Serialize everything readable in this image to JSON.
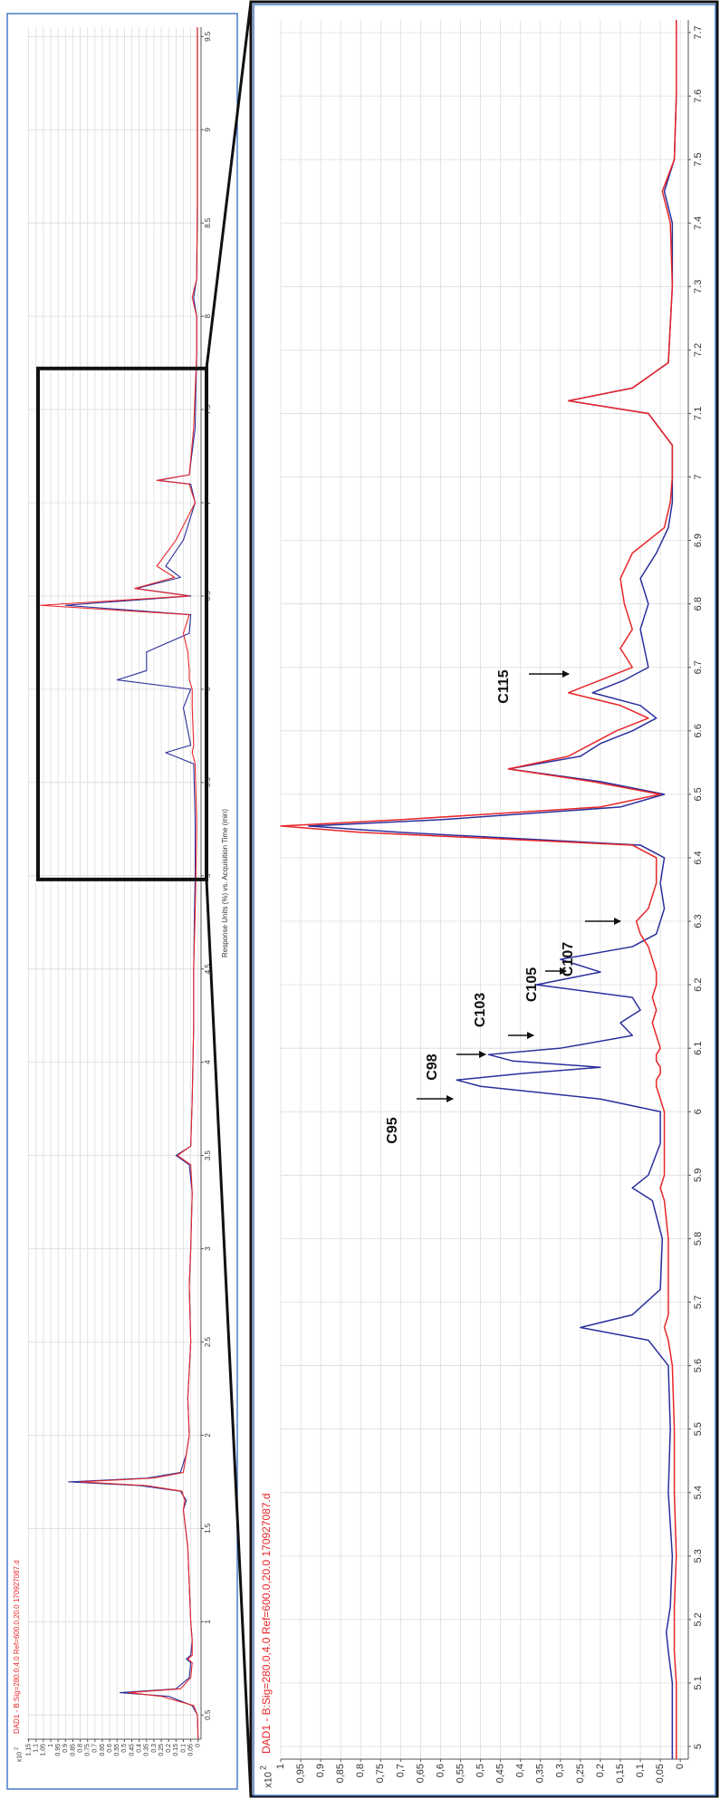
{
  "chart_data": [
    {
      "type": "line",
      "title": "DAD1 - B:Sig=280.0,4.0 Ref=600.0,20.0 170927087.d",
      "x_label": "Response Units (%) vs. Acquisition Time (min)",
      "y_scale": {
        "base": "x10",
        "exponent": "2"
      },
      "x": [
        0.37,
        0.5,
        0.55,
        0.6,
        0.62,
        0.64,
        0.7,
        0.78,
        0.8,
        0.82,
        0.9,
        1.0,
        1.2,
        1.4,
        1.6,
        1.65,
        1.7,
        1.73,
        1.75,
        1.77,
        1.8,
        1.9,
        2.0,
        2.2,
        2.5,
        2.8,
        3.0,
        3.3,
        3.45,
        3.5,
        3.55,
        3.8,
        4.2,
        4.5,
        4.8,
        5.0,
        5.3,
        5.6,
        5.66,
        5.7,
        5.9,
        6.0,
        6.05,
        6.1,
        6.2,
        6.3,
        6.4,
        6.45,
        6.5,
        6.54,
        6.6,
        6.66,
        6.8,
        7.0,
        7.1,
        7.12,
        7.15,
        7.4,
        7.8,
        8.0,
        8.1,
        8.2,
        8.6,
        9.0,
        9.55
      ],
      "series": [
        {
          "color": "#2a2f9c",
          "values": [
            0,
            0.005,
            0.04,
            0.2,
            0.53,
            0.15,
            0.06,
            0.05,
            0.08,
            0.05,
            0.04,
            0.05,
            0.06,
            0.07,
            0.1,
            0.08,
            0.12,
            0.4,
            0.88,
            0.35,
            0.12,
            0.08,
            0.06,
            0.07,
            0.05,
            0.06,
            0.05,
            0.04,
            0.06,
            0.15,
            0.05,
            0.04,
            0.03,
            0.03,
            0.025,
            0.02,
            0.02,
            0.03,
            0.22,
            0.05,
            0.1,
            0.05,
            0.55,
            0.35,
            0.35,
            0.06,
            0.05,
            0.9,
            0.05,
            0.42,
            0.12,
            0.22,
            0.1,
            0.02,
            0.05,
            0.27,
            0.06,
            0.02,
            0.01,
            0.01,
            0.03,
            0.01,
            0.005,
            0.005,
            0.005
          ]
        },
        {
          "color": "#e8262a",
          "values": [
            0,
            0.005,
            0.03,
            0.25,
            0.47,
            0.12,
            0.05,
            0.04,
            0.07,
            0.04,
            0.04,
            0.05,
            0.06,
            0.07,
            0.1,
            0.09,
            0.11,
            0.35,
            0.8,
            0.3,
            0.1,
            0.08,
            0.06,
            0.07,
            0.05,
            0.06,
            0.05,
            0.04,
            0.05,
            0.14,
            0.05,
            0.04,
            0.03,
            0.03,
            0.02,
            0.015,
            0.01,
            0.02,
            0.04,
            0.03,
            0.04,
            0.04,
            0.06,
            0.06,
            0.07,
            0.1,
            0.06,
            1.07,
            0.06,
            0.43,
            0.16,
            0.28,
            0.15,
            0.02,
            0.06,
            0.28,
            0.06,
            0.03,
            0.01,
            0.01,
            0.04,
            0.01,
            0.005,
            0.005,
            0.005
          ]
        }
      ],
      "xlim": [
        0.37,
        9.55
      ],
      "xticks": [
        0.5,
        1,
        1.5,
        2,
        2.5,
        3,
        3.5,
        4,
        4.5,
        5,
        5.5,
        6,
        6.5,
        7,
        7.5,
        8,
        8.5,
        9,
        9.5
      ],
      "ylim": [
        -0.02,
        1.16
      ],
      "yticks": [
        0,
        0.05,
        0.1,
        0.15,
        0.2,
        0.25,
        0.3,
        0.35,
        0.4,
        0.45,
        0.5,
        0.55,
        0.6,
        0.65,
        0.7,
        0.75,
        0.8,
        0.85,
        0.9,
        0.95,
        1,
        1.05,
        1.1,
        1.15
      ],
      "grid": true
    },
    {
      "type": "line",
      "title": "DAD1 - B:Sig=280.0,4.0 Ref=600.0,20.0 170927087.d",
      "y_scale": {
        "base": "x10",
        "exponent": "2"
      },
      "annotations": [
        "C95",
        "C98",
        "C103",
        "C105",
        "C107",
        "C115"
      ],
      "x": [
        4.98,
        5.1,
        5.15,
        5.18,
        5.22,
        5.3,
        5.4,
        5.5,
        5.6,
        5.64,
        5.66,
        5.68,
        5.72,
        5.8,
        5.86,
        5.88,
        5.9,
        5.95,
        6.0,
        6.02,
        6.04,
        6.05,
        6.06,
        6.07,
        6.08,
        6.09,
        6.1,
        6.12,
        6.14,
        6.16,
        6.18,
        6.2,
        6.22,
        6.24,
        6.26,
        6.28,
        6.3,
        6.32,
        6.36,
        6.4,
        6.42,
        6.44,
        6.45,
        6.46,
        6.48,
        6.5,
        6.52,
        6.54,
        6.56,
        6.58,
        6.6,
        6.62,
        6.64,
        6.66,
        6.68,
        6.7,
        6.73,
        6.76,
        6.8,
        6.84,
        6.88,
        6.92,
        6.96,
        7.0,
        7.05,
        7.1,
        7.12,
        7.14,
        7.18,
        7.3,
        7.4,
        7.45,
        7.5,
        7.6,
        7.72
      ],
      "series": [
        {
          "color": "#2a2f9c",
          "values": [
            0.02,
            0.02,
            0.03,
            0.035,
            0.025,
            0.02,
            0.03,
            0.025,
            0.03,
            0.08,
            0.25,
            0.12,
            0.05,
            0.045,
            0.07,
            0.12,
            0.08,
            0.05,
            0.05,
            0.2,
            0.5,
            0.56,
            0.4,
            0.2,
            0.42,
            0.48,
            0.3,
            0.12,
            0.15,
            0.1,
            0.12,
            0.36,
            0.2,
            0.3,
            0.12,
            0.06,
            0.05,
            0.04,
            0.05,
            0.04,
            0.1,
            0.7,
            0.93,
            0.6,
            0.15,
            0.04,
            0.2,
            0.43,
            0.25,
            0.2,
            0.12,
            0.06,
            0.1,
            0.22,
            0.14,
            0.08,
            0.09,
            0.1,
            0.08,
            0.1,
            0.06,
            0.03,
            0.02,
            0.02,
            0.02,
            0.08,
            0.28,
            0.12,
            0.03,
            0.02,
            0.02,
            0.04,
            0.015,
            0.01,
            0.01
          ]
        },
        {
          "color": "#e8262a",
          "values": [
            0.01,
            0.01,
            0.015,
            0.015,
            0.015,
            0.01,
            0.015,
            0.015,
            0.02,
            0.03,
            0.04,
            0.03,
            0.03,
            0.03,
            0.04,
            0.05,
            0.04,
            0.04,
            0.04,
            0.05,
            0.06,
            0.06,
            0.05,
            0.05,
            0.06,
            0.06,
            0.05,
            0.06,
            0.07,
            0.06,
            0.07,
            0.06,
            0.06,
            0.07,
            0.08,
            0.1,
            0.11,
            0.08,
            0.06,
            0.06,
            0.12,
            0.8,
            1.0,
            0.7,
            0.2,
            0.05,
            0.22,
            0.43,
            0.28,
            0.22,
            0.16,
            0.08,
            0.15,
            0.28,
            0.2,
            0.12,
            0.15,
            0.12,
            0.14,
            0.15,
            0.12,
            0.04,
            0.025,
            0.02,
            0.02,
            0.08,
            0.28,
            0.12,
            0.03,
            0.02,
            0.025,
            0.045,
            0.015,
            0.01,
            0.01
          ]
        }
      ],
      "xlim": [
        4.98,
        7.72
      ],
      "xticks": [
        5,
        5.1,
        5.2,
        5.3,
        5.4,
        5.5,
        5.6,
        5.7,
        5.8,
        5.9,
        6,
        6.1,
        6.2,
        6.3,
        6.4,
        6.5,
        6.6,
        6.7,
        6.8,
        6.9,
        7,
        7.1,
        7.2,
        7.3,
        7.4,
        7.5,
        7.6,
        7.7
      ],
      "ylim": [
        -0.02,
        1.0
      ],
      "yticks": [
        0,
        {
          "value": 0.05,
          "label": "0,05"
        },
        {
          "value": 0.1,
          "label": "0,1"
        },
        {
          "value": 0.15,
          "label": "0,15"
        },
        {
          "value": 0.2,
          "label": "0,2"
        },
        {
          "value": 0.25,
          "label": "0,25"
        },
        {
          "value": 0.3,
          "label": "0,3"
        },
        {
          "value": 0.35,
          "label": "0,35"
        },
        {
          "value": 0.4,
          "label": "0,4"
        },
        {
          "value": 0.45,
          "label": "0,45"
        },
        {
          "value": 0.5,
          "label": "0,5"
        },
        {
          "value": 0.55,
          "label": "0,55"
        },
        {
          "value": 0.6,
          "label": "0,6"
        },
        {
          "value": 0.65,
          "label": "0,65"
        },
        {
          "value": 0.7,
          "label": "0,7"
        },
        {
          "value": 0.75,
          "label": "0,75"
        },
        {
          "value": 0.8,
          "label": "0,8"
        },
        {
          "value": 0.85,
          "label": "0,85"
        },
        {
          "value": 0.9,
          "label": "0,9"
        },
        {
          "value": 0.95,
          "label": "0,95"
        },
        1
      ],
      "grid": true
    }
  ]
}
